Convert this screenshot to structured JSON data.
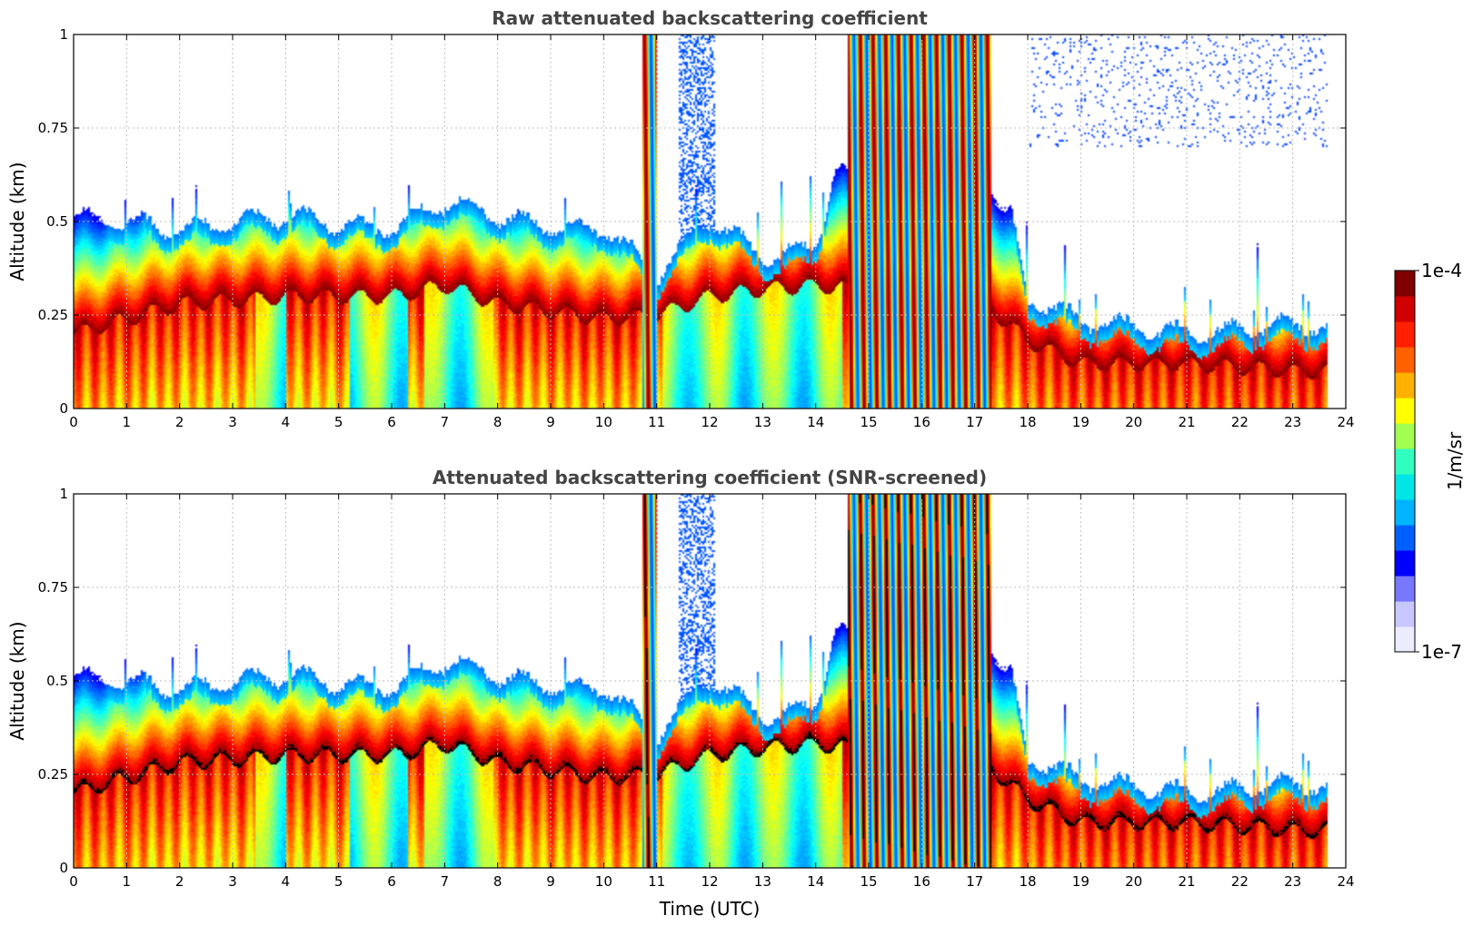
{
  "chart_data": [
    {
      "type": "heatmap",
      "title": "Raw attenuated backscattering coefficient",
      "xlabel": "",
      "ylabel": "Altitude (km)",
      "xlim": [
        0,
        24
      ],
      "ylim": [
        0,
        1
      ],
      "xticks": [
        "0",
        "1",
        "2",
        "3",
        "4",
        "5",
        "6",
        "7",
        "8",
        "9",
        "10",
        "11",
        "12",
        "13",
        "14",
        "15",
        "16",
        "17",
        "18",
        "19",
        "20",
        "21",
        "22",
        "23",
        "24"
      ],
      "yticks": [
        "0",
        "0.25",
        "0.5",
        "0.75",
        "1"
      ],
      "grid": true,
      "screened": false,
      "data_end_time": 23.65,
      "layer_top_km": [
        [
          0,
          0.5
        ],
        [
          1,
          0.5
        ],
        [
          2,
          0.5
        ],
        [
          3,
          0.5
        ],
        [
          4,
          0.5
        ],
        [
          5,
          0.5
        ],
        [
          6,
          0.5
        ],
        [
          7,
          0.55
        ],
        [
          8,
          0.5
        ],
        [
          9,
          0.5
        ],
        [
          10,
          0.5
        ],
        [
          11,
          0.35
        ],
        [
          12,
          0.5
        ],
        [
          13,
          0.42
        ],
        [
          14,
          0.45
        ],
        [
          15,
          1.0
        ],
        [
          16,
          1.0
        ],
        [
          17,
          1.0
        ],
        [
          18,
          0.3
        ],
        [
          19,
          0.22
        ],
        [
          20,
          0.22
        ],
        [
          21,
          0.22
        ],
        [
          22,
          0.21
        ],
        [
          23,
          0.21
        ],
        [
          23.65,
          0.22
        ]
      ],
      "layer_peak_km": [
        [
          0,
          0.2
        ],
        [
          2,
          0.28
        ],
        [
          4,
          0.3
        ],
        [
          6,
          0.3
        ],
        [
          7,
          0.33
        ],
        [
          8,
          0.28
        ],
        [
          10,
          0.24
        ],
        [
          11,
          0.25
        ],
        [
          12,
          0.3
        ],
        [
          13,
          0.32
        ],
        [
          14,
          0.33
        ],
        [
          16,
          0.3
        ],
        [
          17,
          0.3
        ],
        [
          18,
          0.18
        ],
        [
          19,
          0.12
        ],
        [
          20,
          0.12
        ],
        [
          21,
          0.12
        ],
        [
          22,
          0.11
        ],
        [
          23,
          0.1
        ],
        [
          23.65,
          0.1
        ]
      ]
    },
    {
      "type": "heatmap",
      "title": "Attenuated backscattering coefficient (SNR-screened)",
      "xlabel": "Time (UTC)",
      "ylabel": "Altitude (km)",
      "xlim": [
        0,
        24
      ],
      "ylim": [
        0,
        1
      ],
      "xticks": [
        "0",
        "1",
        "2",
        "3",
        "4",
        "5",
        "6",
        "7",
        "8",
        "9",
        "10",
        "11",
        "12",
        "13",
        "14",
        "15",
        "16",
        "17",
        "18",
        "19",
        "20",
        "21",
        "22",
        "23",
        "24"
      ],
      "yticks": [
        "0",
        "0.25",
        "0.5",
        "0.75",
        "1"
      ],
      "grid": true,
      "screened": true,
      "saturated_color": "#000000",
      "data_end_time": 23.65
    }
  ],
  "colorbar": {
    "max_label": "1e-4",
    "min_label": "1e-7",
    "unit_label": "1/m/sr",
    "colormap": "jet",
    "colors": [
      "#ececff",
      "#c8c8ff",
      "#7878ff",
      "#0000ff",
      "#0060ff",
      "#00b4ff",
      "#00e6e6",
      "#30ffc0",
      "#a0ff50",
      "#ffff00",
      "#ffb000",
      "#ff6000",
      "#ff2000",
      "#d00000",
      "#800000"
    ]
  }
}
